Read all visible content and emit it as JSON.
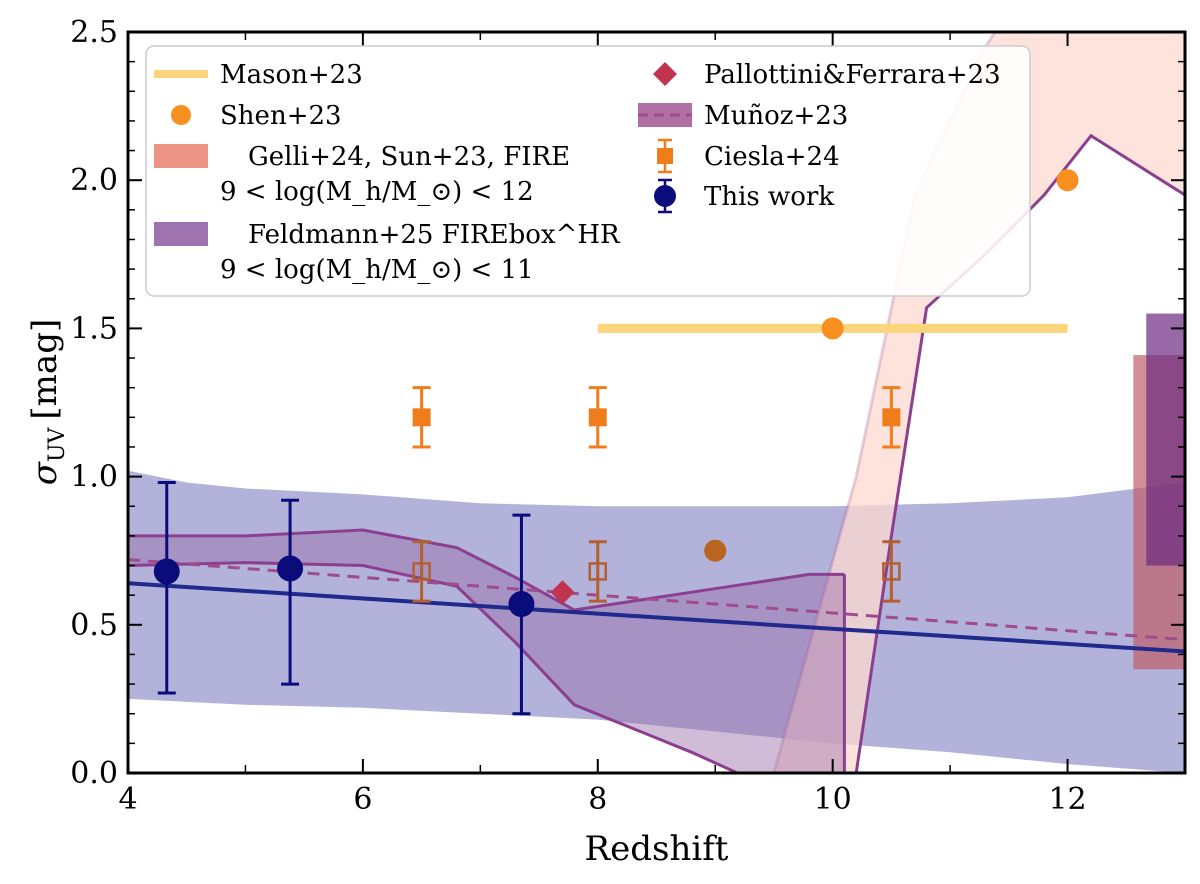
{
  "chart_data": {
    "type": "scatter",
    "xlabel": "Redshift",
    "ylabel": "σ",
    "ylabel_sub": "UV",
    "ylabel_unit": "[mag]",
    "xlim": [
      4,
      13
    ],
    "ylim": [
      0,
      2.5
    ],
    "xticks": [
      4,
      6,
      8,
      10,
      12
    ],
    "yticks": [
      0.0,
      0.5,
      1.0,
      1.5,
      2.0,
      2.5
    ],
    "xtick_labels": [
      "4",
      "6",
      "8",
      "10",
      "12"
    ],
    "ytick_labels": [
      "0.0",
      "0.5",
      "1.0",
      "1.5",
      "2.0",
      "2.5"
    ],
    "grid": false,
    "legend_position": "top",
    "legend": {
      "col1": [
        {
          "key": "mason",
          "label": "Mason+23"
        },
        {
          "key": "shen",
          "label": "Shen+23"
        },
        {
          "key": "gelli",
          "label": "Gelli+24, Sun+23, FIRE",
          "label2": "9 < log(M_h/M_⊙) < 12"
        },
        {
          "key": "feldmann",
          "label": "Feldmann+25 FIREbox^HR",
          "label2": "9 < log(M_h/M_⊙) < 11"
        }
      ],
      "col2": [
        {
          "key": "pallottini",
          "label": "Pallottini&Ferrara+23"
        },
        {
          "key": "munoz",
          "label": "Muñoz+23"
        },
        {
          "key": "ciesla",
          "label": "Ciesla+24"
        },
        {
          "key": "this_work",
          "label": "This work"
        }
      ]
    },
    "colors": {
      "mason": "#fcd47c",
      "shen": "#f7901e",
      "shen_dark": "#b8651f",
      "gelli": "#fcd9cf",
      "gelli_legend": "#ec9585",
      "feldmann": "#aeaed8",
      "feldmann_legend": "#9f73b0",
      "feldmann_outline": "#8b3f8f",
      "pallottini": "#c0344f",
      "munoz": "#9e4c8c",
      "ciesla": "#f07d1b",
      "ciesla_open": "#b35f2e",
      "this_work": "#0b0c7c",
      "fit": "#1f2a8c"
    },
    "mason_line": {
      "x": [
        8,
        12
      ],
      "y": [
        1.5,
        1.5
      ]
    },
    "shen_points": [
      {
        "x": 10,
        "y": 1.5
      },
      {
        "x": 12,
        "y": 2.0
      }
    ],
    "shen_dark_points": [
      {
        "x": 9,
        "y": 0.75
      }
    ],
    "pallottini_points": [
      {
        "x": 7.7,
        "y": 0.61
      }
    ],
    "ciesla_filled": [
      {
        "x": 6.5,
        "y": 1.2,
        "err": 0.1
      },
      {
        "x": 8.0,
        "y": 1.2,
        "err": 0.1
      },
      {
        "x": 10.5,
        "y": 1.2,
        "err": 0.1
      }
    ],
    "ciesla_open": [
      {
        "x": 6.5,
        "y": 0.68,
        "err": 0.1
      },
      {
        "x": 8.0,
        "y": 0.68,
        "err": 0.1
      },
      {
        "x": 10.5,
        "y": 0.68,
        "err": 0.1
      }
    ],
    "this_work": [
      {
        "x": 4.33,
        "y": 0.68,
        "lo": 0.27,
        "hi": 0.98
      },
      {
        "x": 5.38,
        "y": 0.69,
        "lo": 0.3,
        "hi": 0.92
      },
      {
        "x": 7.35,
        "y": 0.57,
        "lo": 0.2,
        "hi": 0.87
      }
    ],
    "this_work_fit": {
      "x": [
        4,
        13
      ],
      "y": [
        0.64,
        0.41
      ]
    },
    "munoz_fit": {
      "x": [
        4,
        13
      ],
      "y": [
        0.72,
        0.45
      ]
    },
    "this_work_band": {
      "x": [
        4,
        4.5,
        5,
        6,
        7,
        8,
        9,
        10,
        11,
        12,
        13
      ],
      "lower": [
        0.25,
        0.24,
        0.23,
        0.22,
        0.2,
        0.18,
        0.14,
        0.1,
        0.07,
        0.03,
        0.0
      ],
      "upper": [
        1.02,
        0.98,
        0.96,
        0.94,
        0.91,
        0.9,
        0.9,
        0.9,
        0.91,
        0.93,
        0.98
      ]
    },
    "feldmann_band": {
      "x": [
        4,
        5,
        6,
        6.8,
        7.3,
        7.8,
        8.3,
        8.8,
        9.3,
        9.8,
        10.1
      ],
      "upper": [
        0.8,
        0.8,
        0.82,
        0.76,
        0.66,
        0.55,
        0.58,
        0.61,
        0.64,
        0.67,
        0.67
      ],
      "lower": [
        0.7,
        0.71,
        0.7,
        0.63,
        0.44,
        0.23,
        0.15,
        0.07,
        -0.02,
        -0.1,
        -0.15
      ]
    },
    "gelli_band": {
      "upper_x": [
        9.5,
        10.2,
        10.7,
        11.3,
        11.8,
        12.3,
        13
      ],
      "upper_y": [
        0.0,
        1.0,
        1.95,
        2.45,
        2.75,
        2.85,
        2.9
      ],
      "lower_x": [
        10.2,
        10.5,
        10.8,
        11.3,
        11.8,
        12.2,
        12.6,
        13
      ],
      "lower_y": [
        0.0,
        0.8,
        1.57,
        1.75,
        1.95,
        2.15,
        2.05,
        1.95
      ]
    },
    "right_bars": [
      {
        "key": "gelli",
        "x0": 12.56,
        "x1": 13.0,
        "y0": 0.35,
        "y1": 1.41,
        "color": "#c15f6a",
        "opacity": 0.7
      },
      {
        "key": "feldmann",
        "x0": 12.67,
        "x1": 13.0,
        "y0": 0.7,
        "y1": 1.55,
        "color": "#6c2a80",
        "opacity": 0.7
      }
    ]
  }
}
